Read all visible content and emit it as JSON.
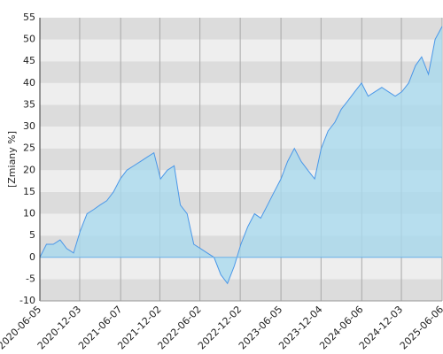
{
  "chart_data": {
    "type": "area",
    "y_label": "[Zmiany %]",
    "xlim": [
      "2020-06-05",
      "2025-06-06"
    ],
    "xticks": [
      "2020-06-05",
      "2020-12-03",
      "2021-06-07",
      "2021-12-02",
      "2022-06-02",
      "2022-12-02",
      "2023-06-05",
      "2023-12-04",
      "2024-06-06",
      "2024-12-03",
      "2025-06-06"
    ],
    "ylim": [
      -10,
      55
    ],
    "yticks": [
      -10,
      -5,
      0,
      5,
      10,
      15,
      20,
      25,
      30,
      35,
      40,
      45,
      50,
      55
    ],
    "grid": true,
    "band_colors": [
      "#dcdcdc",
      "#eeeeee"
    ],
    "x": [
      "2020-06-05",
      "2020-07-05",
      "2020-08-05",
      "2020-09-05",
      "2020-10-05",
      "2020-11-05",
      "2020-12-05",
      "2021-01-05",
      "2021-02-05",
      "2021-03-05",
      "2021-04-05",
      "2021-05-05",
      "2021-06-05",
      "2021-07-05",
      "2021-08-05",
      "2021-09-05",
      "2021-10-05",
      "2021-11-05",
      "2021-12-05",
      "2022-01-05",
      "2022-02-05",
      "2022-03-05",
      "2022-04-05",
      "2022-05-05",
      "2022-06-05",
      "2022-07-05",
      "2022-08-05",
      "2022-09-05",
      "2022-10-05",
      "2022-11-05",
      "2022-12-05",
      "2023-01-05",
      "2023-02-05",
      "2023-03-05",
      "2023-04-05",
      "2023-05-05",
      "2023-06-05",
      "2023-07-05",
      "2023-08-05",
      "2023-09-05",
      "2023-10-05",
      "2023-11-05",
      "2023-12-05",
      "2024-01-05",
      "2024-02-05",
      "2024-03-05",
      "2024-04-05",
      "2024-05-05",
      "2024-06-05",
      "2024-07-05",
      "2024-08-05",
      "2024-09-05",
      "2024-10-05",
      "2024-11-05",
      "2024-12-05",
      "2025-01-05",
      "2025-02-05",
      "2025-03-05",
      "2025-04-05",
      "2025-05-05",
      "2025-06-06"
    ],
    "series": [
      {
        "color": "#4a97e8",
        "fill": "#a9d9ee",
        "values": [
          0,
          3,
          3,
          4,
          2,
          1,
          6,
          10,
          11,
          12,
          13,
          15,
          18,
          20,
          21,
          22,
          23,
          24,
          18,
          20,
          21,
          12,
          10,
          3,
          2,
          1,
          0,
          -4,
          -6,
          -2,
          3,
          7,
          10,
          9,
          12,
          15,
          18,
          22,
          25,
          22,
          20,
          18,
          25,
          29,
          31,
          34,
          36,
          38,
          40,
          37,
          38,
          39,
          38,
          37,
          38,
          40,
          44,
          46,
          42,
          50,
          53
        ]
      }
    ]
  }
}
